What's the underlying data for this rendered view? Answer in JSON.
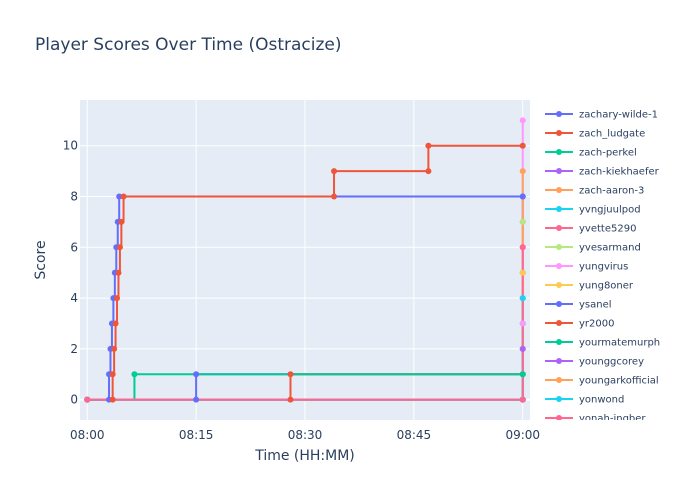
{
  "chart_data": {
    "type": "line",
    "line_shape": "step",
    "title": "Player Scores Over Time (Ostracize)",
    "xlabel": "Time (HH:MM)",
    "ylabel": "Score",
    "x_ticks": [
      "08:00",
      "08:15",
      "08:30",
      "08:45",
      "09:00"
    ],
    "y_ticks": [
      0,
      2,
      4,
      6,
      8,
      10
    ],
    "xlim": [
      "07:59",
      "09:01"
    ],
    "ylim": [
      -0.8,
      11.8
    ],
    "grid": true,
    "legend_position": "right",
    "series": [
      {
        "name": "zachary-wilde-1",
        "color": "#636efa",
        "points": [
          [
            "08:00",
            0
          ],
          [
            "08:15",
            0
          ],
          [
            "08:15",
            1
          ],
          [
            "09:00",
            1
          ],
          [
            "09:00",
            8
          ]
        ]
      },
      {
        "name": "zach_ludgate",
        "color": "#ef553b",
        "points": [
          [
            "08:00",
            0
          ],
          [
            "08:28",
            0
          ],
          [
            "08:28",
            1
          ],
          [
            "09:00",
            1
          ],
          [
            "09:00",
            2
          ]
        ]
      },
      {
        "name": "zach-perkel",
        "color": "#00cc96",
        "points": [
          [
            "08:00",
            0
          ],
          [
            "08:06.5",
            1
          ],
          [
            "09:00",
            1
          ],
          [
            "09:00",
            3
          ]
        ]
      },
      {
        "name": "zach-kiekhaefer",
        "color": "#ab63fa",
        "points": [
          [
            "08:00",
            0
          ],
          [
            "09:00",
            0
          ],
          [
            "09:00",
            5
          ]
        ]
      },
      {
        "name": "zach-aaron-3",
        "color": "#ffa15a",
        "points": [
          [
            "08:00",
            0
          ],
          [
            "09:00",
            0
          ],
          [
            "09:00",
            7
          ]
        ]
      },
      {
        "name": "yvngjuulpod",
        "color": "#19d3f3",
        "points": [
          [
            "08:00",
            0
          ],
          [
            "09:00",
            0
          ],
          [
            "09:00",
            4
          ]
        ]
      },
      {
        "name": "yvette5290",
        "color": "#ff6692",
        "points": [
          [
            "08:00",
            0
          ],
          [
            "09:00",
            0
          ],
          [
            "09:00",
            6
          ]
        ]
      },
      {
        "name": "yvesarmand",
        "color": "#b6e880",
        "points": [
          [
            "08:00",
            0
          ],
          [
            "09:00",
            0
          ],
          [
            "09:00",
            1
          ],
          [
            "09:00",
            7
          ]
        ]
      },
      {
        "name": "yungvirus",
        "color": "#ff97ff",
        "points": [
          [
            "08:00",
            0
          ],
          [
            "09:00",
            0
          ],
          [
            "09:00",
            3
          ],
          [
            "09:00",
            11
          ]
        ]
      },
      {
        "name": "yung8oner",
        "color": "#fecb52",
        "points": [
          [
            "08:00",
            0
          ],
          [
            "09:00",
            0
          ],
          [
            "09:00",
            5
          ]
        ]
      },
      {
        "name": "ysanel",
        "color": "#636efa",
        "points": [
          [
            "08:00",
            0
          ],
          [
            "08:03",
            0
          ],
          [
            "08:03",
            1
          ],
          [
            "08:03.2",
            2
          ],
          [
            "08:03.4",
            3
          ],
          [
            "08:03.6",
            4
          ],
          [
            "08:03.8",
            5
          ],
          [
            "08:04",
            6
          ],
          [
            "08:04.2",
            7
          ],
          [
            "08:04.4",
            8
          ],
          [
            "09:00",
            8
          ]
        ]
      },
      {
        "name": "yr2000",
        "color": "#ef553b",
        "points": [
          [
            "08:00",
            0
          ],
          [
            "08:03.5",
            0
          ],
          [
            "08:03.5",
            1
          ],
          [
            "08:03.7",
            2
          ],
          [
            "08:03.9",
            3
          ],
          [
            "08:04.1",
            4
          ],
          [
            "08:04.3",
            5
          ],
          [
            "08:04.5",
            6
          ],
          [
            "08:04.7",
            7
          ],
          [
            "08:05",
            8
          ],
          [
            "08:34",
            8
          ],
          [
            "08:34",
            9
          ],
          [
            "08:47",
            9
          ],
          [
            "08:47",
            10
          ],
          [
            "09:00",
            10
          ]
        ]
      },
      {
        "name": "yourmatemurph",
        "color": "#00cc96",
        "points": [
          [
            "08:00",
            0
          ],
          [
            "09:00",
            0
          ],
          [
            "09:00",
            1
          ]
        ]
      },
      {
        "name": "younggcorey",
        "color": "#ab63fa",
        "points": [
          [
            "08:00",
            0
          ],
          [
            "09:00",
            0
          ],
          [
            "09:00",
            2
          ]
        ]
      },
      {
        "name": "youngarkofficial",
        "color": "#ffa15a",
        "points": [
          [
            "08:00",
            0
          ],
          [
            "09:00",
            0
          ],
          [
            "09:00",
            9
          ]
        ]
      },
      {
        "name": "yonwond",
        "color": "#19d3f3",
        "points": [
          [
            "08:00",
            0
          ],
          [
            "09:00",
            0
          ],
          [
            "09:00",
            4
          ]
        ]
      },
      {
        "name": "yonah-ingber",
        "color": "#ff6692",
        "points": [
          [
            "08:00",
            0
          ],
          [
            "09:00",
            0
          ],
          [
            "09:00",
            6
          ]
        ]
      }
    ]
  }
}
